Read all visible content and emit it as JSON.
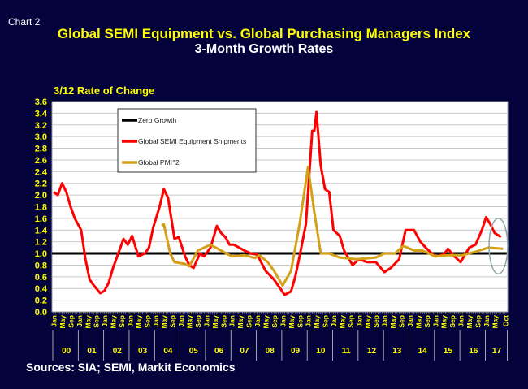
{
  "header": {
    "chart_number": "Chart 2",
    "title": "Global SEMI Equipment vs. Global Purchasing Managers Index",
    "subtitle": "3-Month Growth Rates"
  },
  "footer": {
    "sources": "Sources: SIA; SEMI, Markit Economics"
  },
  "colors": {
    "background": "#03023a",
    "axis_text": "#ffff00",
    "semi": "#ff0000",
    "pmi": "#d4a017",
    "zero": "#000000",
    "highlight_ellipse": "#8fa6a8"
  },
  "chart_data": {
    "type": "line",
    "ylabel": "3/12 Rate of Change",
    "ylim": [
      0,
      3.6
    ],
    "ytick_step": 0.2,
    "ytick_labels": [
      "0.0",
      "0.2",
      "0.4",
      "0.6",
      "0.8",
      "1.0",
      "1.2",
      "1.4",
      "1.6",
      "1.8",
      "2.0",
      "2.2",
      "2.4",
      "2.6",
      "2.8",
      "3.0",
      "3.2",
      "3.4",
      "3.6"
    ],
    "xlim": [
      "2000-01",
      "2017-10"
    ],
    "month_tick_labels": [
      "Jan",
      "May",
      "Sep"
    ],
    "final_month_tick_labels": [
      "Jan",
      "May",
      "Oct"
    ],
    "year_labels": [
      "00",
      "01",
      "02",
      "03",
      "04",
      "05",
      "06",
      "07",
      "08",
      "09",
      "10",
      "11",
      "12",
      "13",
      "14",
      "15",
      "16",
      "17"
    ],
    "grid": true,
    "legend_position": "top-left",
    "reference_line": {
      "name": "Zero Growth",
      "value": 1.0
    },
    "highlight": {
      "shape": "ellipse",
      "x_range": [
        "2017-02",
        "2017-10"
      ],
      "y_range": [
        0.65,
        1.6
      ]
    },
    "series": [
      {
        "name": "Global SEMI Equipment Shipments",
        "color": "#ff0000",
        "points": [
          [
            "2000-01",
            2.05
          ],
          [
            "2000-03",
            2.0
          ],
          [
            "2000-05",
            2.2
          ],
          [
            "2000-07",
            2.05
          ],
          [
            "2000-09",
            1.8
          ],
          [
            "2000-11",
            1.6
          ],
          [
            "2001-02",
            1.4
          ],
          [
            "2001-04",
            0.9
          ],
          [
            "2001-06",
            0.55
          ],
          [
            "2001-08",
            0.45
          ],
          [
            "2001-11",
            0.32
          ],
          [
            "2002-01",
            0.36
          ],
          [
            "2002-03",
            0.5
          ],
          [
            "2002-05",
            0.75
          ],
          [
            "2002-07",
            0.95
          ],
          [
            "2002-10",
            1.25
          ],
          [
            "2002-12",
            1.15
          ],
          [
            "2003-02",
            1.3
          ],
          [
            "2003-05",
            0.95
          ],
          [
            "2003-08",
            1.0
          ],
          [
            "2003-10",
            1.1
          ],
          [
            "2003-12",
            1.45
          ],
          [
            "2004-03",
            1.8
          ],
          [
            "2004-05",
            2.1
          ],
          [
            "2004-07",
            1.95
          ],
          [
            "2004-10",
            1.25
          ],
          [
            "2004-12",
            1.28
          ],
          [
            "2005-03",
            0.95
          ],
          [
            "2005-05",
            0.8
          ],
          [
            "2005-07",
            0.75
          ],
          [
            "2005-10",
            1.0
          ],
          [
            "2005-12",
            0.95
          ],
          [
            "2006-03",
            1.1
          ],
          [
            "2006-06",
            1.47
          ],
          [
            "2006-08",
            1.35
          ],
          [
            "2006-10",
            1.28
          ],
          [
            "2006-12",
            1.15
          ],
          [
            "2007-02",
            1.15
          ],
          [
            "2007-07",
            1.05
          ],
          [
            "2007-10",
            1.0
          ],
          [
            "2008-01",
            0.98
          ],
          [
            "2008-05",
            0.7
          ],
          [
            "2008-09",
            0.55
          ],
          [
            "2009-02",
            0.29
          ],
          [
            "2009-05",
            0.35
          ],
          [
            "2009-07",
            0.6
          ],
          [
            "2009-09",
            0.95
          ],
          [
            "2009-12",
            1.5
          ],
          [
            "2010-03",
            3.1
          ],
          [
            "2010-04",
            3.1
          ],
          [
            "2010-05",
            3.42
          ],
          [
            "2010-06",
            2.95
          ],
          [
            "2010-07",
            2.5
          ],
          [
            "2010-09",
            2.1
          ],
          [
            "2010-11",
            2.05
          ],
          [
            "2011-01",
            1.4
          ],
          [
            "2011-04",
            1.3
          ],
          [
            "2011-06",
            1.05
          ],
          [
            "2011-10",
            0.8
          ],
          [
            "2012-01",
            0.9
          ],
          [
            "2012-05",
            0.85
          ],
          [
            "2012-09",
            0.85
          ],
          [
            "2013-01",
            0.68
          ],
          [
            "2013-04",
            0.75
          ],
          [
            "2013-08",
            0.9
          ],
          [
            "2013-11",
            1.4
          ],
          [
            "2014-03",
            1.4
          ],
          [
            "2014-06",
            1.2
          ],
          [
            "2014-09",
            1.08
          ],
          [
            "2015-01",
            0.95
          ],
          [
            "2015-05",
            0.98
          ],
          [
            "2015-07",
            1.08
          ],
          [
            "2015-10",
            0.95
          ],
          [
            "2016-01",
            0.85
          ],
          [
            "2016-05",
            1.1
          ],
          [
            "2016-08",
            1.15
          ],
          [
            "2016-11",
            1.4
          ],
          [
            "2017-01",
            1.62
          ],
          [
            "2017-03",
            1.5
          ],
          [
            "2017-05",
            1.35
          ],
          [
            "2017-08",
            1.28
          ]
        ]
      },
      {
        "name": "Global PMI^2",
        "color": "#d4a017",
        "points": [
          [
            "2004-04",
            1.47
          ],
          [
            "2004-05",
            1.5
          ],
          [
            "2004-08",
            1.0
          ],
          [
            "2004-10",
            0.85
          ],
          [
            "2005-03",
            0.82
          ],
          [
            "2005-05",
            0.78
          ],
          [
            "2005-09",
            1.05
          ],
          [
            "2006-03",
            1.15
          ],
          [
            "2006-08",
            1.05
          ],
          [
            "2007-01",
            0.95
          ],
          [
            "2007-07",
            0.97
          ],
          [
            "2007-12",
            0.92
          ],
          [
            "2008-02",
            0.97
          ],
          [
            "2008-06",
            0.85
          ],
          [
            "2008-09",
            0.7
          ],
          [
            "2009-01",
            0.45
          ],
          [
            "2009-05",
            0.7
          ],
          [
            "2009-09",
            1.5
          ],
          [
            "2010-01",
            2.48
          ],
          [
            "2010-04",
            1.7
          ],
          [
            "2010-07",
            1.0
          ],
          [
            "2010-11",
            1.0
          ],
          [
            "2011-04",
            0.93
          ],
          [
            "2011-12",
            0.9
          ],
          [
            "2012-09",
            0.93
          ],
          [
            "2013-01",
            1.0
          ],
          [
            "2013-06",
            1.0
          ],
          [
            "2013-10",
            1.13
          ],
          [
            "2014-03",
            1.05
          ],
          [
            "2014-07",
            1.05
          ],
          [
            "2015-01",
            0.95
          ],
          [
            "2015-07",
            0.97
          ],
          [
            "2016-02",
            0.97
          ],
          [
            "2016-08",
            1.03
          ],
          [
            "2017-02",
            1.1
          ],
          [
            "2017-09",
            1.08
          ]
        ]
      }
    ]
  }
}
